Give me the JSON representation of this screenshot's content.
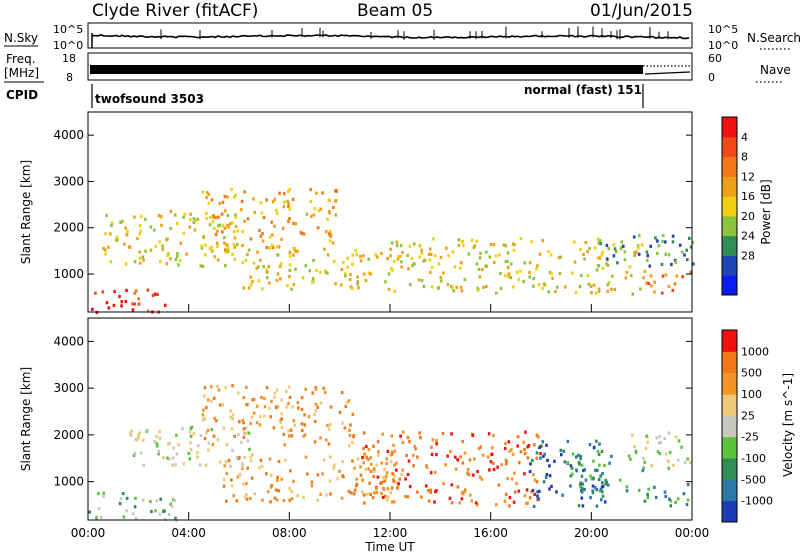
{
  "header": {
    "station": "Clyde River (fitACF)",
    "beam": "Beam 05",
    "date": "01/Jun/2015"
  },
  "panels": {
    "nsky": {
      "label": "N.Sky",
      "right_label": "N.Search",
      "left_ticks": [
        "10^5",
        "10^0"
      ],
      "right_ticks": [
        "10^5",
        "10^0"
      ]
    },
    "freq": {
      "label_line1": "Freq.",
      "label_line2": "[MHz]",
      "right_label": "Nave",
      "left_ticks": [
        "18",
        "8"
      ],
      "right_ticks": [
        "60",
        "0"
      ]
    },
    "cpid": {
      "label": "CPID",
      "mode1": "twofsound 3503",
      "mode2": "normal (fast) 151"
    }
  },
  "chart_data": [
    {
      "type": "heatmap",
      "title": "",
      "xlabel": "",
      "ylabel": "Slant Range [km]",
      "x_ticks": [
        "00:00",
        "04:00",
        "08:00",
        "12:00",
        "16:00",
        "20:00",
        "00:00"
      ],
      "y_ticks": [
        1000,
        2000,
        3000,
        4000
      ],
      "ylim": [
        180,
        4500
      ],
      "colorbar": {
        "label": "Power [dB]",
        "tick_labels": [
          "4",
          "8",
          "12",
          "16",
          "20",
          "24",
          "28"
        ],
        "colors": [
          "#0a1cf0",
          "#1e46b4",
          "#2f8e55",
          "#8cc43c",
          "#f0d010",
          "#f0a018",
          "#f07818",
          "#f04818",
          "#f01010"
        ]
      },
      "scatter_regions_hours_km": [
        {
          "t": [
            0.0,
            1.8
          ],
          "r": [
            200,
            700
          ],
          "level": 8
        },
        {
          "t": [
            1.8,
            3.4
          ],
          "r": [
            200,
            700
          ],
          "level": 7
        },
        {
          "t": [
            0.5,
            6.0
          ],
          "r": [
            1200,
            2400
          ],
          "level": 4
        },
        {
          "t": [
            4.5,
            10.0
          ],
          "r": [
            1500,
            2900
          ],
          "level": 5
        },
        {
          "t": [
            6.0,
            12.0
          ],
          "r": [
            700,
            1600
          ],
          "level": 4
        },
        {
          "t": [
            12.0,
            22.0
          ],
          "r": [
            600,
            1800
          ],
          "level": 4
        },
        {
          "t": [
            20.0,
            24.0
          ],
          "r": [
            1200,
            1900
          ],
          "level": 2
        },
        {
          "t": [
            22.0,
            24.0
          ],
          "r": [
            600,
            1100
          ],
          "level": 6
        }
      ]
    },
    {
      "type": "heatmap",
      "title": "",
      "xlabel": "Time UT",
      "ylabel": "Slant Range [km]",
      "x_ticks": [
        "00:00",
        "04:00",
        "08:00",
        "12:00",
        "16:00",
        "20:00",
        "00:00"
      ],
      "y_ticks": [
        1000,
        2000,
        3000,
        4000
      ],
      "ylim": [
        180,
        4500
      ],
      "colorbar": {
        "label": "Velocity [m s^-1]",
        "tick_labels": [
          "1000",
          "500",
          "100",
          "25",
          "-25",
          "-100",
          "-500",
          "-1000"
        ],
        "colors": [
          "#1a3cb4",
          "#2e78a8",
          "#2f8e55",
          "#5cc43c",
          "#c8c8c0",
          "#f0c878",
          "#f09628",
          "#f07818",
          "#f01010"
        ]
      },
      "scatter_regions_hours_km": [
        {
          "t": [
            0.0,
            3.5
          ],
          "r": [
            200,
            800
          ],
          "level": 3
        },
        {
          "t": [
            1.5,
            6.5
          ],
          "r": [
            1300,
            2200
          ],
          "level": 4
        },
        {
          "t": [
            4.5,
            10.5
          ],
          "r": [
            1800,
            3100
          ],
          "level": 6
        },
        {
          "t": [
            5.0,
            12.5
          ],
          "r": [
            600,
            1600
          ],
          "level": 6
        },
        {
          "t": [
            10.5,
            18.0
          ],
          "r": [
            500,
            2100
          ],
          "level": 7
        },
        {
          "t": [
            17.5,
            20.5
          ],
          "r": [
            500,
            1900
          ],
          "level": 1
        },
        {
          "t": [
            19.0,
            22.0
          ],
          "r": [
            800,
            1700
          ],
          "level": 2
        },
        {
          "t": [
            21.5,
            24.0
          ],
          "r": [
            1300,
            2100
          ],
          "level": 4
        },
        {
          "t": [
            22.0,
            24.0
          ],
          "r": [
            500,
            1000
          ],
          "level": 2
        }
      ]
    }
  ]
}
